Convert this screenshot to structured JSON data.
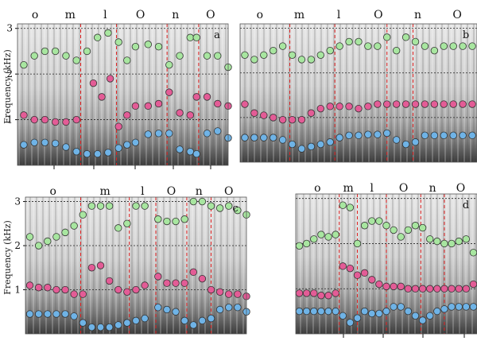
{
  "figure": {
    "ylabel": "Frequency (kHz)",
    "colors": {
      "f1": "#6fb3e6",
      "f2": "#e35c96",
      "f3": "#a8e6a0",
      "boundary": "#e02020",
      "gridline": "#222222"
    }
  },
  "chart_data": [
    {
      "type": "scatter",
      "panel_label": "a",
      "phonemes": [
        "o",
        "m",
        "l",
        "O",
        "n",
        "O"
      ],
      "ylim": [
        0,
        3.1
      ],
      "yticks": [
        1,
        2,
        3
      ],
      "ylabel": "Frequency (kHz)",
      "boundaries": [
        0.3,
        0.47,
        0.71,
        0.86
      ],
      "series": [
        {
          "formant": "F1",
          "x": [
            0.03,
            0.08,
            0.13,
            0.18,
            0.23,
            0.28,
            0.33,
            0.38,
            0.43,
            0.48,
            0.52,
            0.56,
            0.62,
            0.67,
            0.72,
            0.77,
            0.82,
            0.85,
            0.9,
            0.95,
            1.0
          ],
          "values": [
            0.45,
            0.5,
            0.5,
            0.48,
            0.4,
            0.3,
            0.25,
            0.25,
            0.28,
            0.38,
            0.45,
            0.5,
            0.68,
            0.7,
            0.7,
            0.35,
            0.3,
            0.25,
            0.7,
            0.75,
            0.6
          ]
        },
        {
          "formant": "F2",
          "x": [
            0.03,
            0.08,
            0.13,
            0.18,
            0.23,
            0.28,
            0.36,
            0.4,
            0.44,
            0.48,
            0.52,
            0.56,
            0.62,
            0.67,
            0.72,
            0.77,
            0.82,
            0.85,
            0.9,
            0.95,
            1.0
          ],
          "values": [
            1.1,
            1.0,
            1.0,
            0.95,
            0.95,
            1.0,
            1.8,
            1.5,
            1.9,
            0.85,
            1.1,
            1.3,
            1.3,
            1.35,
            1.6,
            1.15,
            1.1,
            1.5,
            1.5,
            1.35,
            1.3
          ]
        },
        {
          "formant": "F3",
          "x": [
            0.03,
            0.08,
            0.13,
            0.18,
            0.23,
            0.28,
            0.33,
            0.38,
            0.43,
            0.48,
            0.52,
            0.56,
            0.62,
            0.67,
            0.72,
            0.77,
            0.82,
            0.85,
            0.9,
            0.95,
            1.0
          ],
          "values": [
            2.2,
            2.4,
            2.5,
            2.5,
            2.4,
            2.3,
            2.5,
            2.8,
            2.9,
            2.7,
            2.3,
            2.6,
            2.65,
            2.6,
            2.2,
            2.4,
            2.8,
            2.8,
            2.4,
            2.4,
            2.15
          ]
        }
      ]
    },
    {
      "type": "scatter",
      "panel_label": "b",
      "phonemes": [
        "o",
        "m",
        "l",
        "O",
        "n",
        "O"
      ],
      "ylim": [
        0,
        3.1
      ],
      "boundaries": [
        0.21,
        0.4,
        0.62,
        0.73
      ],
      "series": [
        {
          "formant": "F1",
          "x": [
            0.02,
            0.06,
            0.1,
            0.14,
            0.18,
            0.22,
            0.26,
            0.3,
            0.34,
            0.38,
            0.42,
            0.46,
            0.5,
            0.54,
            0.58,
            0.62,
            0.66,
            0.7,
            0.74,
            0.78,
            0.82,
            0.86,
            0.9,
            0.94,
            0.98
          ],
          "values": [
            0.55,
            0.55,
            0.55,
            0.55,
            0.5,
            0.4,
            0.3,
            0.35,
            0.4,
            0.45,
            0.55,
            0.6,
            0.6,
            0.62,
            0.62,
            0.65,
            0.5,
            0.4,
            0.45,
            0.6,
            0.6,
            0.6,
            0.6,
            0.6,
            0.6
          ]
        },
        {
          "formant": "F2",
          "x": [
            0.02,
            0.06,
            0.1,
            0.14,
            0.18,
            0.22,
            0.26,
            0.3,
            0.34,
            0.38,
            0.42,
            0.46,
            0.5,
            0.54,
            0.58,
            0.62,
            0.66,
            0.7,
            0.74,
            0.78,
            0.82,
            0.86,
            0.9,
            0.94,
            0.98
          ],
          "values": [
            1.3,
            1.1,
            1.05,
            1.0,
            0.95,
            0.95,
            0.95,
            1.1,
            1.2,
            1.25,
            1.25,
            1.25,
            1.2,
            1.25,
            1.3,
            1.3,
            1.3,
            1.3,
            1.3,
            1.3,
            1.3,
            1.3,
            1.3,
            1.3,
            1.3
          ]
        },
        {
          "formant": "F3",
          "x": [
            0.02,
            0.06,
            0.1,
            0.14,
            0.18,
            0.22,
            0.26,
            0.3,
            0.34,
            0.38,
            0.42,
            0.46,
            0.5,
            0.54,
            0.58,
            0.62,
            0.66,
            0.7,
            0.74,
            0.78,
            0.82,
            0.86,
            0.9,
            0.94,
            0.98
          ],
          "values": [
            2.4,
            2.3,
            2.4,
            2.5,
            2.6,
            2.4,
            2.3,
            2.3,
            2.4,
            2.5,
            2.6,
            2.7,
            2.7,
            2.6,
            2.6,
            2.8,
            2.5,
            2.8,
            2.7,
            2.6,
            2.5,
            2.6,
            2.6,
            2.6,
            2.6
          ]
        }
      ]
    },
    {
      "type": "scatter",
      "panel_label": "c",
      "phonemes": [
        "o",
        "m",
        "l",
        "O",
        "n",
        "O"
      ],
      "ylim": [
        0,
        3.1
      ],
      "yticks": [
        1,
        2,
        3
      ],
      "ylabel": "Frequency (kHz)",
      "boundaries": [
        0.25,
        0.47,
        0.59,
        0.73,
        0.84
      ],
      "series": [
        {
          "formant": "F1",
          "x": [
            0.02,
            0.06,
            0.1,
            0.14,
            0.18,
            0.22,
            0.26,
            0.3,
            0.34,
            0.38,
            0.42,
            0.46,
            0.5,
            0.54,
            0.6,
            0.64,
            0.68,
            0.72,
            0.76,
            0.8,
            0.84,
            0.88,
            0.92,
            0.96,
            1.0
          ],
          "values": [
            0.45,
            0.45,
            0.45,
            0.45,
            0.45,
            0.4,
            0.25,
            0.15,
            0.15,
            0.15,
            0.2,
            0.25,
            0.3,
            0.35,
            0.6,
            0.55,
            0.5,
            0.3,
            0.2,
            0.3,
            0.35,
            0.55,
            0.6,
            0.6,
            0.5
          ]
        },
        {
          "formant": "F2",
          "x": [
            0.02,
            0.06,
            0.1,
            0.14,
            0.18,
            0.22,
            0.26,
            0.3,
            0.34,
            0.38,
            0.42,
            0.46,
            0.5,
            0.54,
            0.6,
            0.64,
            0.68,
            0.72,
            0.76,
            0.8,
            0.84,
            0.88,
            0.92,
            0.96,
            1.0
          ],
          "values": [
            1.1,
            1.05,
            1.05,
            1.0,
            1.0,
            0.9,
            0.9,
            1.5,
            1.55,
            1.2,
            1.0,
            0.95,
            1.0,
            1.1,
            1.3,
            1.15,
            1.15,
            1.15,
            1.4,
            1.25,
            1.0,
            0.95,
            0.9,
            0.9,
            0.85
          ]
        },
        {
          "formant": "F3",
          "x": [
            0.02,
            0.06,
            0.1,
            0.14,
            0.18,
            0.22,
            0.26,
            0.3,
            0.34,
            0.38,
            0.42,
            0.46,
            0.5,
            0.54,
            0.6,
            0.64,
            0.68,
            0.72,
            0.76,
            0.8,
            0.84,
            0.88,
            0.92,
            0.96,
            1.0
          ],
          "values": [
            2.2,
            2.0,
            2.1,
            2.2,
            2.3,
            2.45,
            2.7,
            2.9,
            2.9,
            2.9,
            2.4,
            2.5,
            2.9,
            2.9,
            2.6,
            2.55,
            2.55,
            2.6,
            3.0,
            3.0,
            2.9,
            2.85,
            2.9,
            2.8,
            2.7
          ]
        }
      ]
    },
    {
      "type": "scatter",
      "panel_label": "d",
      "phonemes": [
        "o",
        "m",
        "l",
        "O",
        "n",
        "O"
      ],
      "ylim": [
        0,
        3.1
      ],
      "boundaries": [
        0.24,
        0.34,
        0.5,
        0.69,
        0.82
      ],
      "series": [
        {
          "formant": "F1",
          "x": [
            0.02,
            0.06,
            0.1,
            0.14,
            0.18,
            0.22,
            0.26,
            0.3,
            0.34,
            0.38,
            0.42,
            0.46,
            0.5,
            0.54,
            0.58,
            0.62,
            0.66,
            0.7,
            0.74,
            0.78,
            0.82,
            0.86,
            0.9,
            0.94,
            0.98
          ],
          "values": [
            0.5,
            0.5,
            0.5,
            0.5,
            0.5,
            0.5,
            0.4,
            0.25,
            0.35,
            0.5,
            0.45,
            0.45,
            0.5,
            0.6,
            0.6,
            0.5,
            0.4,
            0.3,
            0.4,
            0.5,
            0.55,
            0.6,
            0.6,
            0.6,
            0.6
          ]
        },
        {
          "formant": "F2",
          "x": [
            0.02,
            0.06,
            0.1,
            0.14,
            0.18,
            0.22,
            0.26,
            0.3,
            0.34,
            0.38,
            0.42,
            0.46,
            0.5,
            0.54,
            0.58,
            0.62,
            0.66,
            0.7,
            0.74,
            0.78,
            0.82,
            0.86,
            0.9,
            0.94,
            0.98
          ],
          "values": [
            0.9,
            0.9,
            0.9,
            0.85,
            0.85,
            0.9,
            1.5,
            1.45,
            1.3,
            1.35,
            1.2,
            1.1,
            1.05,
            1.05,
            1.05,
            1.0,
            1.0,
            1.0,
            1.0,
            1.0,
            1.0,
            1.0,
            1.0,
            1.0,
            1.1
          ]
        },
        {
          "formant": "F3",
          "x": [
            0.02,
            0.06,
            0.1,
            0.14,
            0.18,
            0.22,
            0.26,
            0.3,
            0.34,
            0.38,
            0.42,
            0.46,
            0.5,
            0.54,
            0.58,
            0.62,
            0.66,
            0.7,
            0.74,
            0.78,
            0.82,
            0.86,
            0.9,
            0.94,
            0.98
          ],
          "values": [
            1.95,
            2.0,
            2.1,
            2.2,
            2.15,
            2.2,
            2.85,
            2.8,
            2.0,
            2.4,
            2.5,
            2.5,
            2.4,
            2.3,
            2.15,
            2.3,
            2.4,
            2.35,
            2.1,
            2.05,
            2.0,
            2.0,
            2.05,
            2.1,
            1.8
          ]
        }
      ]
    }
  ]
}
